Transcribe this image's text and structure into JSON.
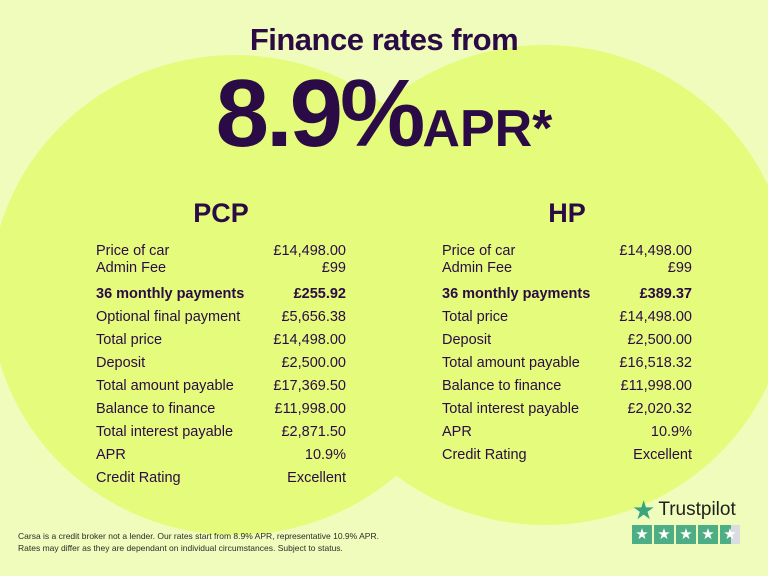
{
  "headline": {
    "line1": "Finance rates from",
    "rate": "8.9%",
    "suffix": "APR*"
  },
  "pcp": {
    "title": "PCP",
    "rows": [
      {
        "label": "Price of car",
        "value": "£14,498.00"
      },
      {
        "label": "Admin Fee",
        "value": "£99"
      },
      {
        "label": "36 monthly payments",
        "value": "£255.92"
      },
      {
        "label": "Optional final payment",
        "value": "£5,656.38"
      },
      {
        "label": "Total price",
        "value": "£14,498.00"
      },
      {
        "label": "Deposit",
        "value": "£2,500.00"
      },
      {
        "label": "Total amount payable",
        "value": "£17,369.50"
      },
      {
        "label": "Balance to finance",
        "value": "£11,998.00"
      },
      {
        "label": "Total interest payable",
        "value": "£2,871.50"
      },
      {
        "label": "APR",
        "value": "10.9%"
      },
      {
        "label": "Credit Rating",
        "value": "Excellent"
      }
    ]
  },
  "hp": {
    "title": "HP",
    "rows": [
      {
        "label": "Price of car",
        "value": "£14,498.00"
      },
      {
        "label": "Admin Fee",
        "value": "£99"
      },
      {
        "label": "36 monthly payments",
        "value": "£389.37"
      },
      {
        "label": "Total price",
        "value": "£14,498.00"
      },
      {
        "label": "Deposit",
        "value": "£2,500.00"
      },
      {
        "label": "Total amount payable",
        "value": "£16,518.32"
      },
      {
        "label": "Balance to finance",
        "value": "£11,998.00"
      },
      {
        "label": "Total interest payable",
        "value": "£2,020.32"
      },
      {
        "label": "APR",
        "value": "10.9%"
      },
      {
        "label": "Credit Rating",
        "value": "Excellent"
      }
    ]
  },
  "disclaimer": {
    "line1": "Carsa is a credit broker not a lender. Our rates start from 8.9% APR, representative 10.9% APR.",
    "line2": "Rates may differ as they are dependant on individual circumstances. Subject to status."
  },
  "trustpilot": {
    "name": "Trustpilot",
    "rating_stars": 4.5,
    "icon": "star-icon",
    "color": "#4dad85"
  }
}
